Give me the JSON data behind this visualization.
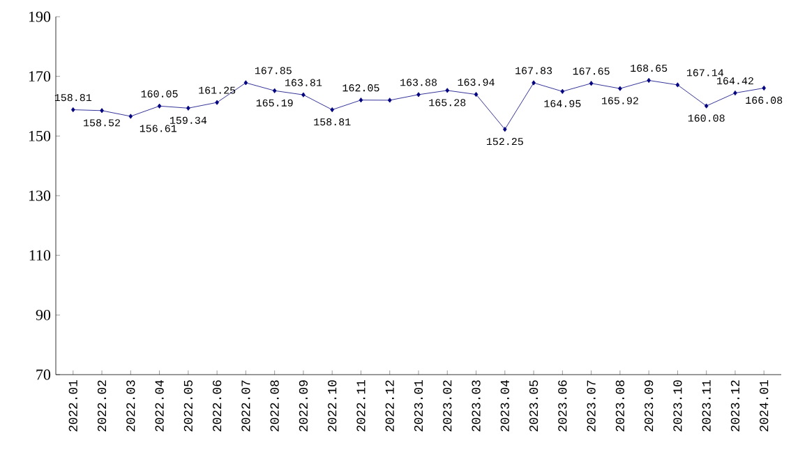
{
  "chart_data": {
    "type": "line",
    "categories": [
      "2022.01",
      "2022.02",
      "2022.03",
      "2022.04",
      "2022.05",
      "2022.06",
      "2022.07",
      "2022.08",
      "2022.09",
      "2022.10",
      "2022.11",
      "2022.12",
      "2023.01",
      "2023.02",
      "2023.03",
      "2023.04",
      "2023.05",
      "2023.06",
      "2023.07",
      "2023.08",
      "2023.09",
      "2023.10",
      "2023.11",
      "2023.12",
      "2024.01"
    ],
    "values": [
      158.81,
      158.52,
      156.61,
      160.05,
      159.34,
      161.25,
      167.85,
      165.19,
      163.81,
      158.81,
      162.05,
      162.0,
      163.88,
      165.28,
      163.94,
      152.25,
      167.83,
      164.95,
      167.65,
      165.92,
      168.65,
      167.14,
      160.08,
      164.42,
      166.08
    ],
    "value_labels": [
      "158.81",
      "158.52",
      "156.61",
      "160.05",
      "159.34",
      "161.25",
      "167.85",
      "165.19",
      "163.81",
      "158.81",
      "162.05",
      null,
      "163.88",
      "165.28",
      "163.94",
      "152.25",
      "167.83",
      "164.95",
      "167.65",
      "165.92",
      "168.65",
      "167.14",
      "160.08",
      "164.42",
      "166.08"
    ],
    "color": "#000080",
    "marker": "diamond",
    "ylim": [
      70,
      190
    ],
    "yticks": [
      70,
      90,
      110,
      130,
      150,
      170,
      190
    ],
    "grid": false
  }
}
